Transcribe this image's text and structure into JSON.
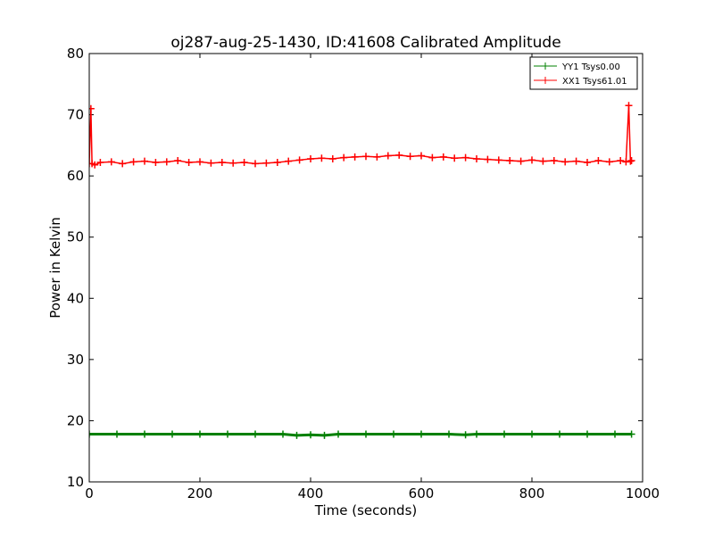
{
  "chart_data": {
    "type": "line",
    "title": "oj287-aug-25-1430, ID:41608 Calibrated Amplitude",
    "xlabel": "Time (seconds)",
    "ylabel": "Power in Kelvin",
    "xlim": [
      0,
      1000
    ],
    "ylim": [
      10,
      80
    ],
    "x_ticks": [
      0,
      200,
      400,
      600,
      800,
      1000
    ],
    "y_ticks": [
      10,
      20,
      30,
      40,
      50,
      60,
      70,
      80
    ],
    "grid": false,
    "legend_position": "top-right",
    "marker": "+",
    "series": [
      {
        "name": "YY1 Tsys0.00",
        "color": "#008000",
        "x": [
          0,
          50,
          100,
          150,
          200,
          250,
          300,
          350,
          375,
          400,
          425,
          450,
          500,
          550,
          600,
          650,
          680,
          700,
          750,
          800,
          850,
          900,
          950,
          980
        ],
        "y": [
          17.8,
          17.8,
          17.8,
          17.8,
          17.8,
          17.8,
          17.8,
          17.8,
          17.6,
          17.7,
          17.6,
          17.8,
          17.8,
          17.8,
          17.8,
          17.8,
          17.7,
          17.8,
          17.8,
          17.8,
          17.8,
          17.8,
          17.8,
          17.8
        ]
      },
      {
        "name": "XX1 Tsys61.01",
        "color": "#ff0000",
        "x": [
          0,
          3,
          5,
          10,
          20,
          40,
          60,
          80,
          100,
          120,
          140,
          160,
          180,
          200,
          220,
          240,
          260,
          280,
          300,
          320,
          340,
          360,
          380,
          400,
          420,
          440,
          460,
          480,
          500,
          520,
          540,
          560,
          580,
          600,
          620,
          640,
          660,
          680,
          700,
          720,
          740,
          760,
          780,
          800,
          820,
          840,
          860,
          880,
          900,
          920,
          940,
          960,
          970,
          975,
          978,
          980
        ],
        "y": [
          62.0,
          71.0,
          62.0,
          61.8,
          62.2,
          62.3,
          62.0,
          62.3,
          62.4,
          62.2,
          62.3,
          62.5,
          62.2,
          62.3,
          62.1,
          62.2,
          62.1,
          62.2,
          62.0,
          62.1,
          62.2,
          62.4,
          62.6,
          62.8,
          62.9,
          62.8,
          63.0,
          63.1,
          63.2,
          63.1,
          63.3,
          63.4,
          63.2,
          63.3,
          63.0,
          63.1,
          62.9,
          63.0,
          62.8,
          62.7,
          62.6,
          62.5,
          62.4,
          62.6,
          62.4,
          62.5,
          62.3,
          62.4,
          62.2,
          62.5,
          62.3,
          62.5,
          62.3,
          71.5,
          62.4,
          62.5
        ]
      }
    ]
  }
}
